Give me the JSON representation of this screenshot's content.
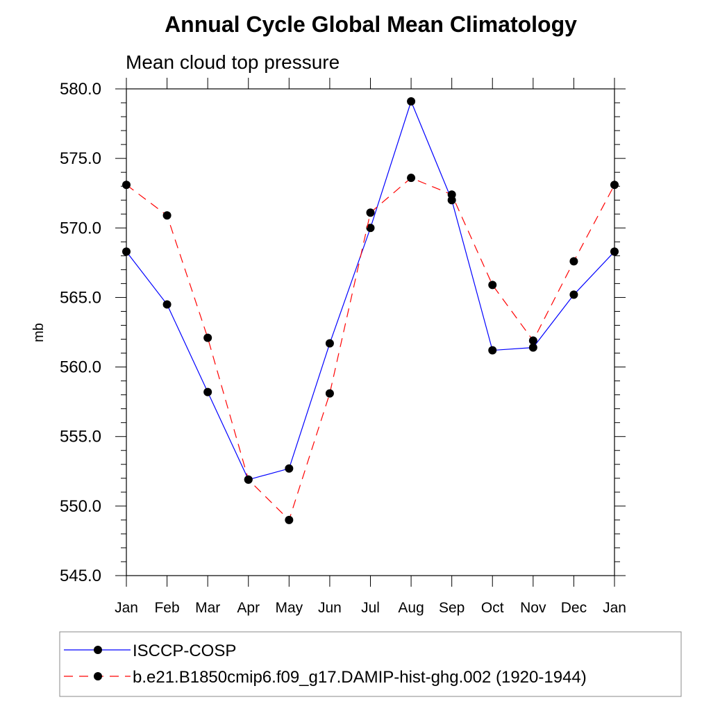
{
  "chart_data": {
    "type": "line",
    "title": "Annual Cycle Global Mean Climatology",
    "subtitle": "Mean cloud top pressure",
    "ylabel": "mb",
    "xlabel": "",
    "categories": [
      "Jan",
      "Feb",
      "Mar",
      "Apr",
      "May",
      "Jun",
      "Jul",
      "Aug",
      "Sep",
      "Oct",
      "Nov",
      "Dec",
      "Jan"
    ],
    "ylim": [
      545.0,
      580.0
    ],
    "yticks": [
      "545.0",
      "550.0",
      "555.0",
      "560.0",
      "565.0",
      "570.0",
      "575.0",
      "580.0"
    ],
    "grid": false,
    "legend_position": "bottom",
    "series": [
      {
        "name": "ISCCP-COSP",
        "color": "#0000ff",
        "dash": "solid",
        "values": [
          568.3,
          564.5,
          558.2,
          551.9,
          552.7,
          561.7,
          570.0,
          579.1,
          572.0,
          561.2,
          561.4,
          565.2,
          568.3
        ]
      },
      {
        "name": "b.e21.B1850cmip6.f09_g17.DAMIP-hist-ghg.002 (1920-1944)",
        "color": "#ff0000",
        "dash": "dashed",
        "values": [
          573.1,
          570.9,
          562.1,
          551.9,
          549.0,
          558.1,
          571.1,
          573.6,
          572.4,
          565.9,
          561.9,
          567.6,
          573.1
        ]
      }
    ]
  }
}
